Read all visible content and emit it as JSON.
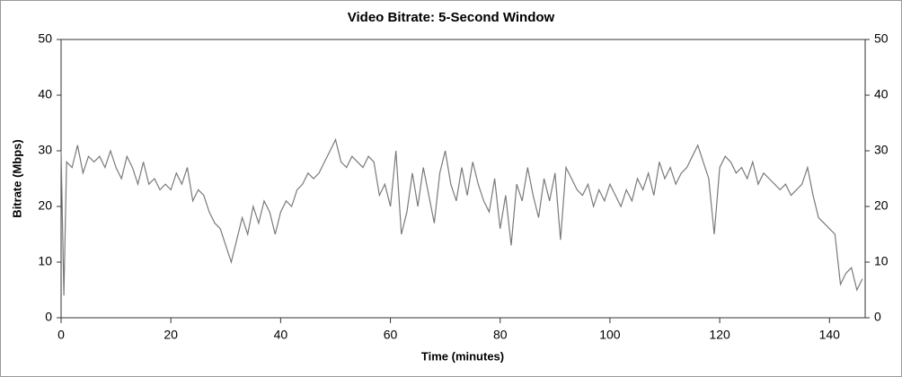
{
  "chart_data": {
    "type": "line",
    "title": "Video Bitrate: 5-Second Window",
    "x_label": "Time (minutes)",
    "y_label": "Bitrate (Mbps)",
    "xlim": [
      0,
      146.5
    ],
    "xticks": [
      0,
      20,
      40,
      60,
      80,
      100,
      120,
      140
    ],
    "ylim": [
      0,
      50
    ],
    "yticks": [
      0,
      10,
      20,
      30,
      40,
      50
    ],
    "x": [
      0,
      0.5,
      1,
      2,
      3,
      4,
      5,
      6,
      7,
      8,
      9,
      10,
      11,
      12,
      13,
      14,
      15,
      16,
      17,
      18,
      19,
      20,
      21,
      22,
      23,
      24,
      25,
      26,
      27,
      28,
      29,
      30,
      31,
      32,
      33,
      34,
      35,
      36,
      37,
      38,
      39,
      40,
      41,
      42,
      43,
      44,
      45,
      46,
      47,
      48,
      49,
      50,
      51,
      52,
      53,
      54,
      55,
      56,
      57,
      58,
      59,
      60,
      61,
      62,
      63,
      64,
      65,
      66,
      67,
      68,
      69,
      70,
      71,
      72,
      73,
      74,
      75,
      76,
      77,
      78,
      79,
      80,
      81,
      82,
      83,
      84,
      85,
      86,
      87,
      88,
      89,
      90,
      91,
      92,
      93,
      94,
      95,
      96,
      97,
      98,
      99,
      100,
      101,
      102,
      103,
      104,
      105,
      106,
      107,
      108,
      109,
      110,
      111,
      112,
      113,
      114,
      115,
      116,
      117,
      118,
      119,
      120,
      121,
      122,
      123,
      124,
      125,
      126,
      127,
      128,
      129,
      130,
      131,
      132,
      133,
      134,
      135,
      136,
      137,
      138,
      139,
      140,
      141,
      142,
      143,
      144,
      145,
      146
    ],
    "series": [
      {
        "name": "Bitrate",
        "color": "#7a7a7a",
        "values": [
          30,
          4,
          28,
          27,
          31,
          26,
          29,
          28,
          29,
          27,
          30,
          27,
          25,
          29,
          27,
          24,
          28,
          24,
          25,
          23,
          24,
          23,
          26,
          24,
          27,
          21,
          23,
          22,
          19,
          17,
          16,
          13,
          10,
          14,
          18,
          15,
          20,
          17,
          21,
          19,
          15,
          19,
          21,
          20,
          23,
          24,
          26,
          25,
          26,
          28,
          30,
          32,
          28,
          27,
          29,
          28,
          27,
          29,
          28,
          22,
          24,
          20,
          30,
          15,
          19,
          26,
          20,
          27,
          22,
          17,
          26,
          30,
          24,
          21,
          27,
          22,
          28,
          24,
          21,
          19,
          25,
          16,
          22,
          13,
          24,
          21,
          27,
          22,
          18,
          25,
          21,
          26,
          14,
          27,
          25,
          23,
          22,
          24,
          20,
          23,
          21,
          24,
          22,
          20,
          23,
          21,
          25,
          23,
          26,
          22,
          28,
          25,
          27,
          24,
          26,
          27,
          29,
          31,
          28,
          25,
          15,
          27,
          29,
          28,
          26,
          27,
          25,
          28,
          24,
          26,
          25,
          24,
          23,
          24,
          22,
          23,
          24,
          27,
          22,
          18,
          17,
          16,
          15,
          6,
          8,
          9,
          5,
          7
        ]
      }
    ]
  }
}
